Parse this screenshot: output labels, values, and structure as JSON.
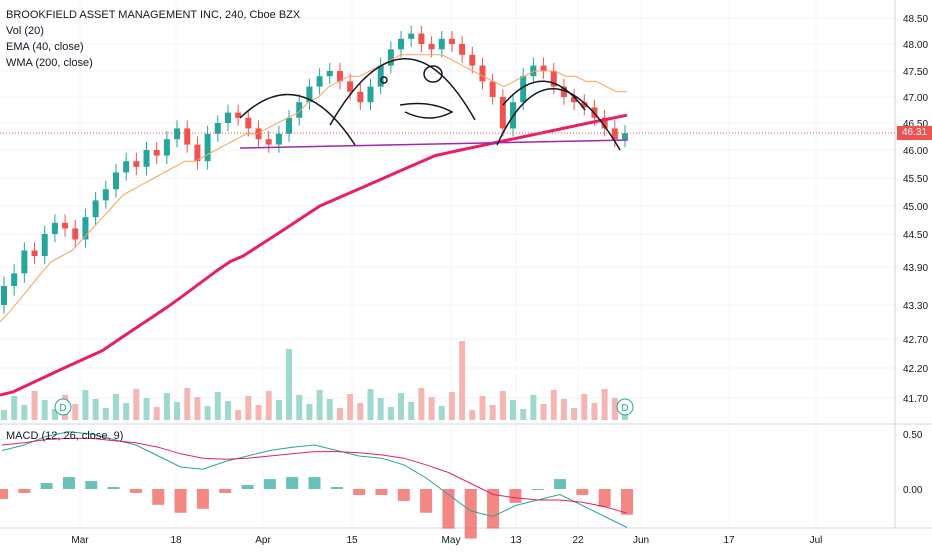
{
  "title": "BROOKFIELD ASSET MANAGEMENT INC, 240, Cboe BZX",
  "indicators": [
    "Vol (20)",
    "EMA (40, close)",
    "WMA (200, close)"
  ],
  "macd_label": "MACD (12, 26, close, 9)",
  "last_price_label": "46.31",
  "colors": {
    "up": "#26a69a",
    "down": "#ef5350",
    "ema": "#f7a35c",
    "wma": "#e91e63",
    "support": "#9c27b0",
    "price_line": "#ef5350",
    "macd_line": "#26a69a",
    "signal_line": "#e91e63"
  },
  "price_axis_ticks": [
    "48.50",
    "48.00",
    "47.50",
    "47.00",
    "46.50",
    "46.00",
    "45.50",
    "45.00",
    "44.50",
    "43.90",
    "43.30",
    "42.70",
    "42.20",
    "41.70"
  ],
  "macd_axis_ticks": [
    "0.50",
    "0.00"
  ],
  "x_axis_ticks": [
    "Mar",
    "18",
    "Apr",
    "15",
    "May",
    "13",
    "22",
    "Jun",
    "17",
    "Jul"
  ],
  "dividend_marker": "D",
  "chart_data": {
    "type": "candlestick",
    "title": "BROOKFIELD ASSET MANAGEMENT INC, 240, Cboe BZX",
    "y_ticks": [
      48.5,
      48.0,
      47.5,
      47.0,
      46.5,
      46.0,
      45.5,
      45.0,
      44.5,
      43.9,
      43.3,
      42.7,
      42.2,
      41.7
    ],
    "last_price": 46.31,
    "support_level": 46.1,
    "series_close": [
      43.6,
      43.8,
      44.2,
      44.1,
      44.5,
      44.7,
      44.6,
      44.4,
      44.8,
      45.1,
      45.3,
      45.6,
      45.8,
      45.7,
      46.0,
      45.9,
      46.2,
      46.4,
      46.1,
      45.8,
      46.3,
      46.5,
      46.7,
      46.6,
      46.4,
      46.2,
      46.1,
      46.3,
      46.6,
      46.9,
      47.2,
      47.4,
      47.5,
      47.3,
      47.1,
      46.9,
      47.2,
      47.6,
      47.9,
      48.1,
      48.2,
      48.0,
      47.9,
      48.1,
      48.0,
      47.8,
      47.6,
      47.3,
      47.0,
      46.4,
      46.9,
      47.4,
      47.6,
      47.5,
      47.2,
      47.0,
      46.9,
      46.8,
      46.6,
      46.4,
      46.2,
      46.31
    ],
    "ema40": [
      43.0,
      43.2,
      43.4,
      43.6,
      43.8,
      44.0,
      44.1,
      44.2,
      44.4,
      44.6,
      44.8,
      45.0,
      45.2,
      45.3,
      45.4,
      45.5,
      45.6,
      45.7,
      45.8,
      45.8,
      45.9,
      46.0,
      46.1,
      46.2,
      46.3,
      46.3,
      46.4,
      46.5,
      46.6,
      46.7,
      46.9,
      47.0,
      47.2,
      47.3,
      47.4,
      47.4,
      47.5,
      47.6,
      47.7,
      47.8,
      47.8,
      47.8,
      47.8,
      47.8,
      47.7,
      47.6,
      47.5,
      47.4,
      47.3,
      47.2,
      47.3,
      47.4,
      47.5,
      47.5,
      47.5,
      47.4,
      47.4,
      47.3,
      47.3,
      47.2,
      47.1,
      47.1
    ],
    "wma200": [
      41.75,
      41.8,
      41.9,
      42.0,
      42.1,
      42.2,
      42.3,
      42.4,
      42.5,
      42.65,
      42.8,
      42.95,
      43.1,
      43.25,
      43.4,
      43.55,
      43.7,
      43.85,
      44.0,
      44.1,
      44.25,
      44.4,
      44.55,
      44.7,
      44.85,
      45.0,
      45.1,
      45.2,
      45.3,
      45.4,
      45.5,
      45.6,
      45.7,
      45.8,
      45.9,
      45.95,
      46.0,
      46.05,
      46.1,
      46.15,
      46.2,
      46.25,
      46.3,
      46.35,
      46.4,
      46.45,
      46.5,
      46.55,
      46.6,
      46.65
    ],
    "macd": [
      0.35,
      0.4,
      0.48,
      0.52,
      0.5,
      0.45,
      0.4,
      0.3,
      0.2,
      0.18,
      0.25,
      0.3,
      0.35,
      0.38,
      0.4,
      0.35,
      0.3,
      0.28,
      0.22,
      0.1,
      -0.05,
      -0.2,
      -0.25,
      -0.15,
      -0.1,
      -0.05,
      -0.15,
      -0.25,
      -0.35
    ],
    "signal": [
      0.4,
      0.42,
      0.45,
      0.46,
      0.46,
      0.44,
      0.42,
      0.38,
      0.32,
      0.28,
      0.27,
      0.28,
      0.3,
      0.32,
      0.34,
      0.34,
      0.33,
      0.31,
      0.28,
      0.22,
      0.15,
      0.05,
      -0.05,
      -0.08,
      -0.1,
      -0.1,
      -0.12,
      -0.16,
      -0.22
    ]
  }
}
